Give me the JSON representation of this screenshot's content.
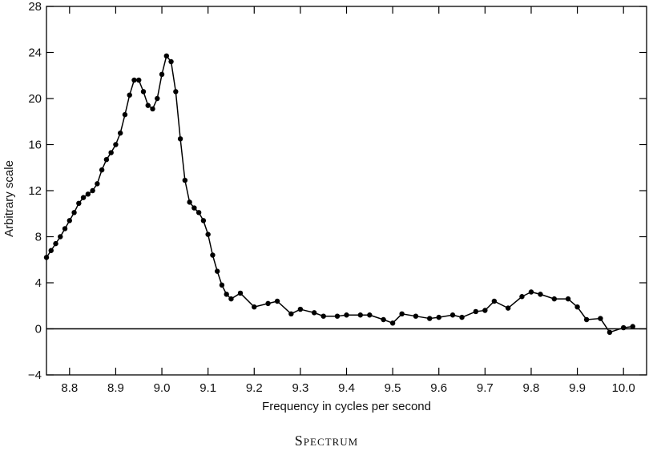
{
  "chart_data": {
    "type": "line",
    "title": "",
    "caption": "Spectrum",
    "xlabel": "Frequency in cycles per second",
    "ylabel": "Arbitrary scale",
    "xlim": [
      8.75,
      10.05
    ],
    "ylim": [
      -4,
      28
    ],
    "xticks": [
      8.8,
      8.9,
      9.0,
      9.1,
      9.2,
      9.3,
      9.4,
      9.5,
      9.6,
      9.7,
      9.8,
      9.9,
      10.0
    ],
    "xtick_labels": [
      "8.8",
      "8.9",
      "9.0",
      "9.1",
      "9.2",
      "9.3",
      "9.4",
      "9.5",
      "9.6",
      "9.7",
      "9.8",
      "9.9",
      "10.0"
    ],
    "yticks": [
      -4,
      0,
      4,
      8,
      12,
      16,
      20,
      24,
      28
    ],
    "ytick_labels": [
      "−4",
      "0",
      "4",
      "8",
      "12",
      "16",
      "20",
      "24",
      "28"
    ],
    "grid": false,
    "zero_line": true,
    "series": [
      {
        "points": [
          [
            8.75,
            6.2
          ],
          [
            8.76,
            6.8
          ],
          [
            8.77,
            7.4
          ],
          [
            8.78,
            8.0
          ],
          [
            8.79,
            8.7
          ],
          [
            8.8,
            9.4
          ],
          [
            8.81,
            10.1
          ],
          [
            8.82,
            10.9
          ],
          [
            8.83,
            11.4
          ],
          [
            8.84,
            11.7
          ],
          [
            8.85,
            12.0
          ],
          [
            8.86,
            12.6
          ],
          [
            8.87,
            13.8
          ],
          [
            8.88,
            14.7
          ],
          [
            8.89,
            15.3
          ],
          [
            8.9,
            16.0
          ],
          [
            8.91,
            17.0
          ],
          [
            8.92,
            18.6
          ],
          [
            8.93,
            20.3
          ],
          [
            8.94,
            21.6
          ],
          [
            8.95,
            21.6
          ],
          [
            8.96,
            20.6
          ],
          [
            8.97,
            19.4
          ],
          [
            8.98,
            19.1
          ],
          [
            8.99,
            20.0
          ],
          [
            9.0,
            22.1
          ],
          [
            9.01,
            23.7
          ],
          [
            9.02,
            23.2
          ],
          [
            9.03,
            20.6
          ],
          [
            9.04,
            16.5
          ],
          [
            9.05,
            12.9
          ],
          [
            9.06,
            11.0
          ],
          [
            9.07,
            10.5
          ],
          [
            9.08,
            10.1
          ],
          [
            9.09,
            9.4
          ],
          [
            9.1,
            8.2
          ],
          [
            9.11,
            6.4
          ],
          [
            9.12,
            5.0
          ],
          [
            9.13,
            3.8
          ],
          [
            9.14,
            3.0
          ],
          [
            9.15,
            2.6
          ],
          [
            9.17,
            3.1
          ],
          [
            9.2,
            1.9
          ],
          [
            9.23,
            2.2
          ],
          [
            9.25,
            2.4
          ],
          [
            9.28,
            1.3
          ],
          [
            9.3,
            1.7
          ],
          [
            9.33,
            1.4
          ],
          [
            9.35,
            1.1
          ],
          [
            9.38,
            1.1
          ],
          [
            9.4,
            1.2
          ],
          [
            9.43,
            1.2
          ],
          [
            9.45,
            1.2
          ],
          [
            9.48,
            0.8
          ],
          [
            9.5,
            0.5
          ],
          [
            9.52,
            1.3
          ],
          [
            9.55,
            1.1
          ],
          [
            9.58,
            0.9
          ],
          [
            9.6,
            1.0
          ],
          [
            9.63,
            1.2
          ],
          [
            9.65,
            1.0
          ],
          [
            9.68,
            1.5
          ],
          [
            9.7,
            1.6
          ],
          [
            9.72,
            2.4
          ],
          [
            9.75,
            1.8
          ],
          [
            9.78,
            2.8
          ],
          [
            9.8,
            3.2
          ],
          [
            9.82,
            3.0
          ],
          [
            9.85,
            2.6
          ],
          [
            9.88,
            2.6
          ],
          [
            9.9,
            1.9
          ],
          [
            9.92,
            0.8
          ],
          [
            9.95,
            0.9
          ],
          [
            9.97,
            -0.3
          ],
          [
            10.0,
            0.1
          ],
          [
            10.02,
            0.2
          ]
        ]
      }
    ]
  }
}
